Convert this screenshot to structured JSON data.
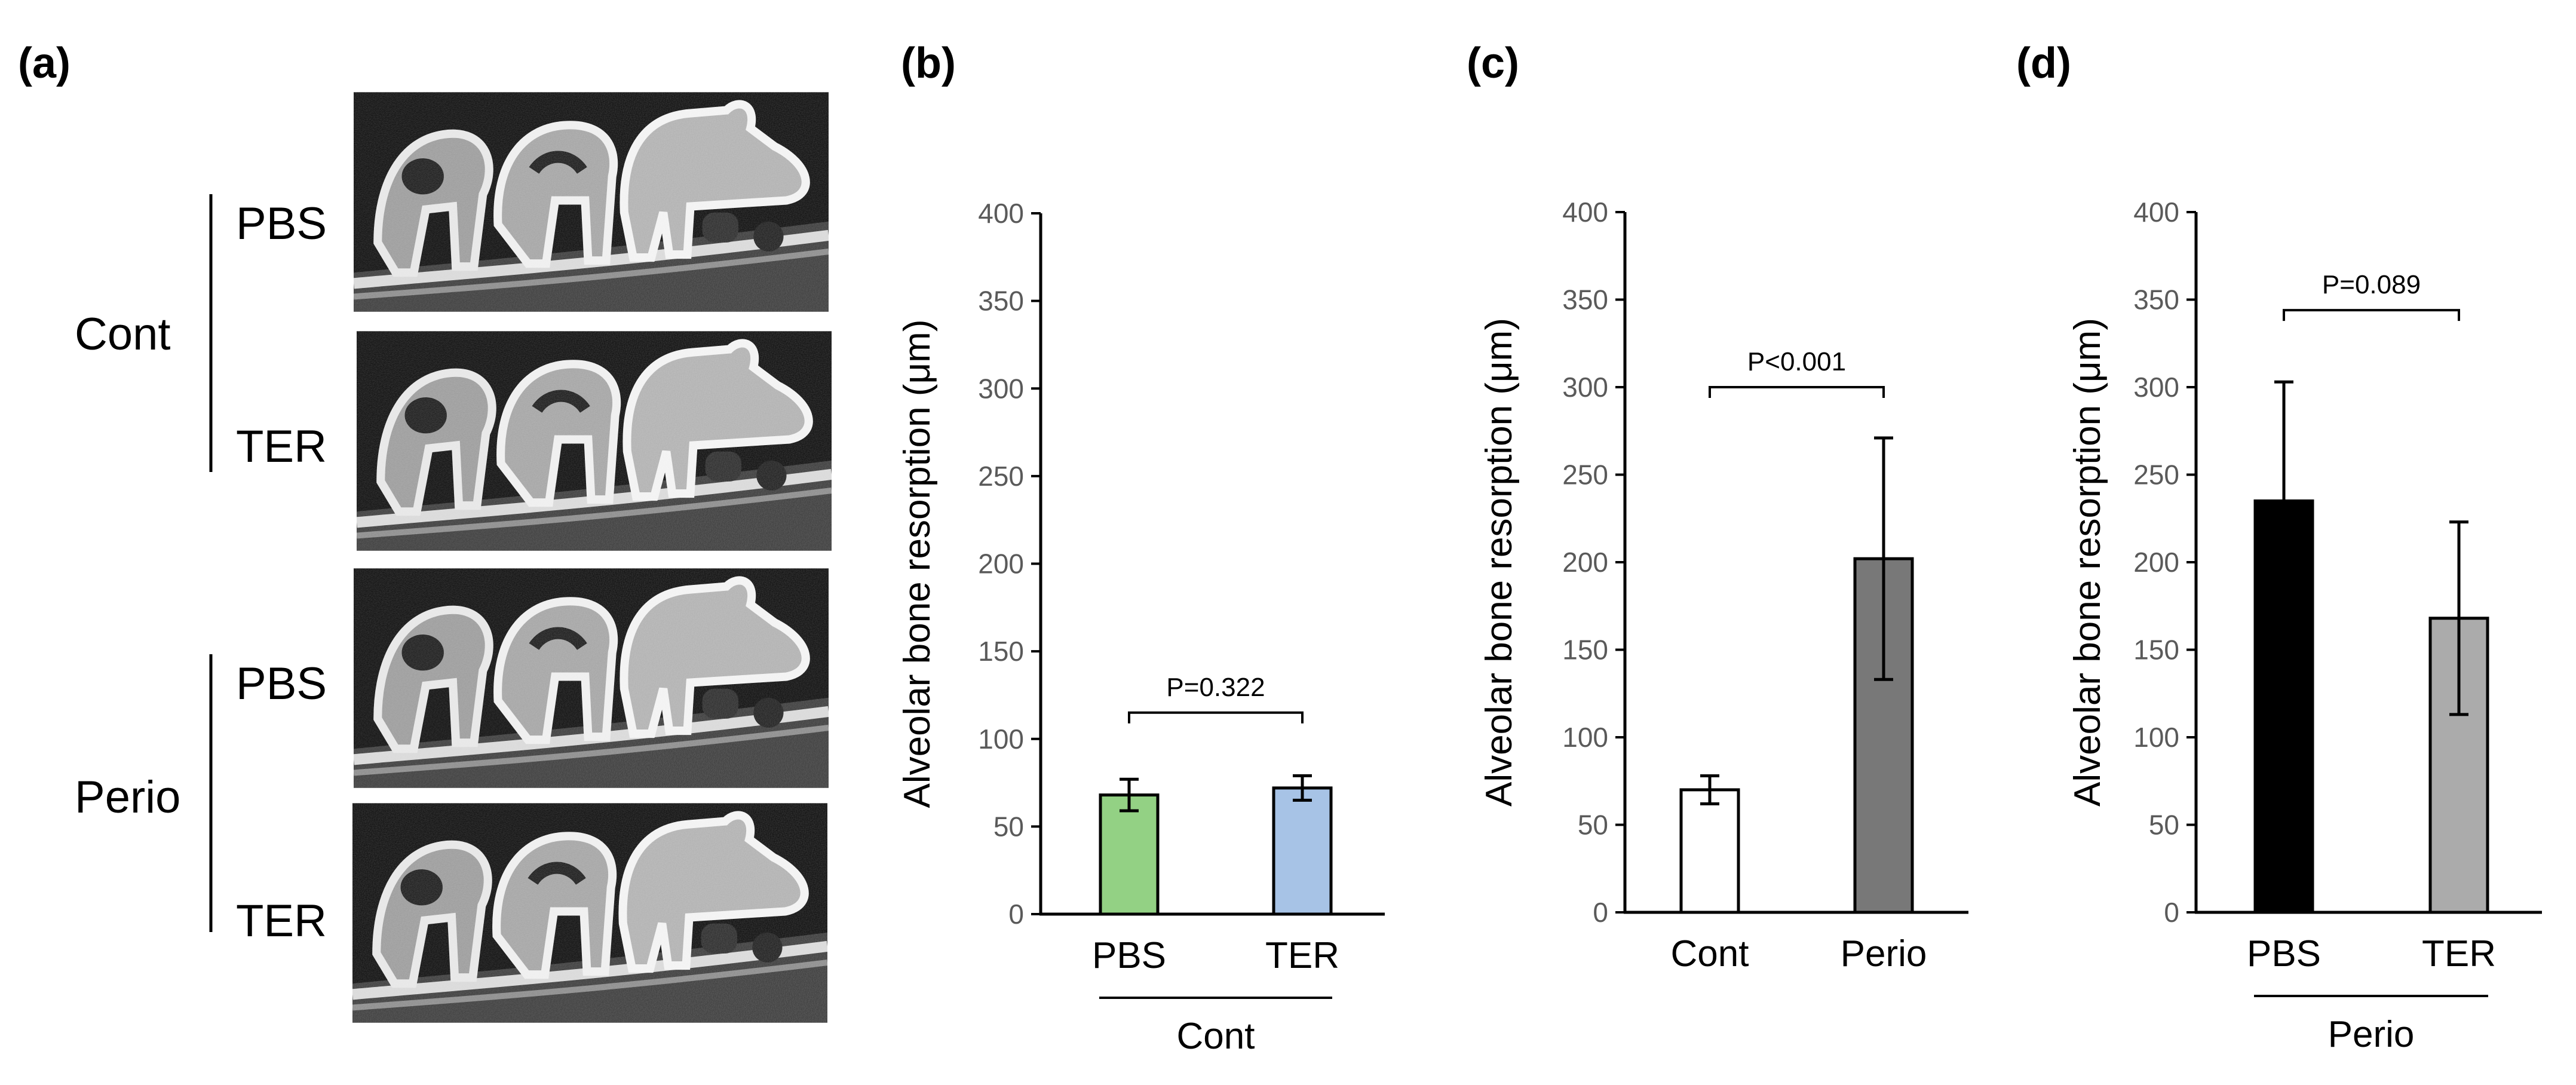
{
  "panel_a": {
    "label": "(a)",
    "groups": [
      "Cont",
      "Perio"
    ],
    "rows": [
      "PBS",
      "TER",
      "PBS",
      "TER"
    ]
  },
  "chart_data": [
    {
      "type": "bar",
      "panel": "(b)",
      "categories": [
        "PBS",
        "TER"
      ],
      "values": [
        68,
        72
      ],
      "errors": [
        9,
        7
      ],
      "colors": [
        "#93d184",
        "#a7c3e6"
      ],
      "group_label": "Cont",
      "ylabel": "Alveolar bone resorption (μm)",
      "ylim": [
        0,
        400
      ],
      "yticks": [
        "0",
        "50",
        "100",
        "150",
        "200",
        "250",
        "300",
        "350",
        "400"
      ],
      "bracket_y": 115,
      "pvalue": "P=0.322"
    },
    {
      "type": "bar",
      "panel": "(c)",
      "categories": [
        "Cont",
        "Perio"
      ],
      "values": [
        70,
        202
      ],
      "errors": [
        8,
        69
      ],
      "colors": [
        "#ffffff",
        "#787878"
      ],
      "group_label": "",
      "ylabel": "Alveolar bone resorption (μm)",
      "ylim": [
        0,
        400
      ],
      "yticks": [
        "0",
        "50",
        "100",
        "150",
        "200",
        "250",
        "300",
        "350",
        "400"
      ],
      "bracket_y": 300,
      "pvalue": "P<0.001"
    },
    {
      "type": "bar",
      "panel": "(d)",
      "categories": [
        "PBS",
        "TER"
      ],
      "values": [
        235,
        168
      ],
      "errors": [
        68,
        55
      ],
      "colors": [
        "#000000",
        "#ababab"
      ],
      "group_label": "Perio",
      "ylabel": "Alveolar bone resorption (μm)",
      "ylim": [
        0,
        400
      ],
      "yticks": [
        "0",
        "50",
        "100",
        "150",
        "200",
        "250",
        "300",
        "350",
        "400"
      ],
      "bracket_y": 344,
      "pvalue": "P=0.089"
    }
  ]
}
